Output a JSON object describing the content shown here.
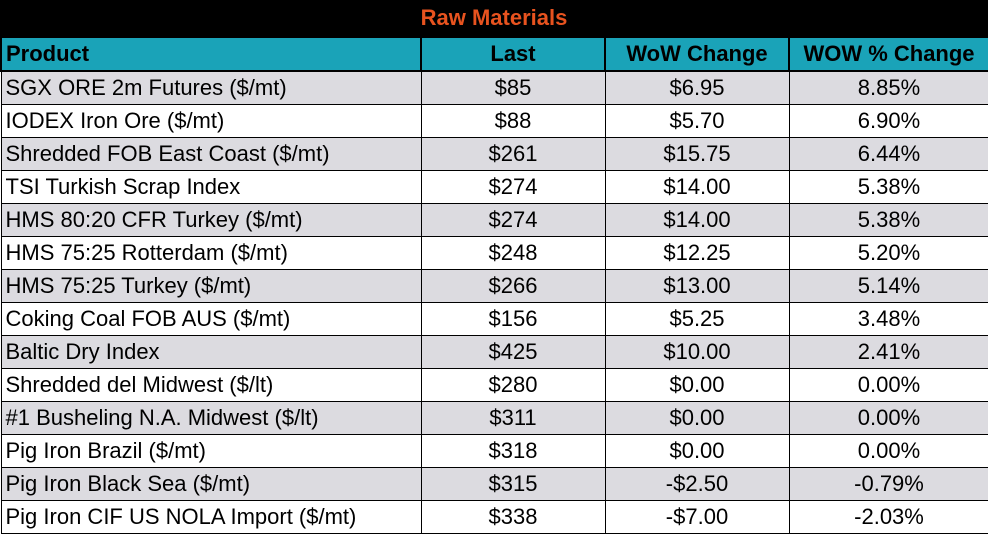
{
  "title": "Raw Materials",
  "headers": {
    "product": "Product",
    "last": "Last",
    "wow_change": "WoW Change",
    "wow_pct_change": "WOW % Change"
  },
  "rows": [
    {
      "product": "SGX ORE 2m Futures ($/mt)",
      "last": "$85",
      "wow_change": "$6.95",
      "wow_pct_change": "8.85%"
    },
    {
      "product": "IODEX  Iron Ore ($/mt)",
      "last": "$88",
      "wow_change": "$5.70",
      "wow_pct_change": "6.90%"
    },
    {
      "product": "Shredded FOB East Coast ($/mt)",
      "last": "$261",
      "wow_change": "$15.75",
      "wow_pct_change": "6.44%"
    },
    {
      "product": "TSI Turkish Scrap Index",
      "last": "$274",
      "wow_change": "$14.00",
      "wow_pct_change": "5.38%"
    },
    {
      "product": "HMS 80:20 CFR Turkey ($/mt)",
      "last": "$274",
      "wow_change": "$14.00",
      "wow_pct_change": "5.38%"
    },
    {
      "product": "HMS 75:25 Rotterdam ($/mt)",
      "last": "$248",
      "wow_change": "$12.25",
      "wow_pct_change": "5.20%"
    },
    {
      "product": "HMS 75:25 Turkey ($/mt)",
      "last": "$266",
      "wow_change": "$13.00",
      "wow_pct_change": "5.14%"
    },
    {
      "product": "Coking Coal FOB AUS ($/mt)",
      "last": "$156",
      "wow_change": "$5.25",
      "wow_pct_change": "3.48%"
    },
    {
      "product": "Baltic Dry Index",
      "last": "$425",
      "wow_change": "$10.00",
      "wow_pct_change": "2.41%"
    },
    {
      "product": "Shredded del  Midwest ($/lt)",
      "last": "$280",
      "wow_change": "$0.00",
      "wow_pct_change": "0.00%"
    },
    {
      "product": "#1 Busheling N.A. Midwest ($/lt)",
      "last": "$311",
      "wow_change": "$0.00",
      "wow_pct_change": "0.00%"
    },
    {
      "product": "Pig Iron Brazil ($/mt)",
      "last": "$318",
      "wow_change": "$0.00",
      "wow_pct_change": "0.00%"
    },
    {
      "product": "Pig Iron Black Sea ($/mt)",
      "last": "$315",
      "wow_change": "-$2.50",
      "wow_pct_change": "-0.79%"
    },
    {
      "product": "Pig Iron CIF US NOLA Import ($/mt)",
      "last": "$338",
      "wow_change": "-$7.00",
      "wow_pct_change": "-2.03%"
    }
  ],
  "colors": {
    "title_bg": "#000000",
    "title_text": "#e8531f",
    "header_bg": "#1aa3b8",
    "row_alt_bg": "#dcdbe0"
  }
}
